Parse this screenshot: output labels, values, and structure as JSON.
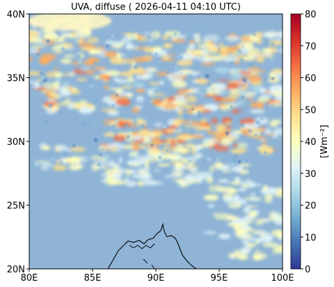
{
  "title": "UVA, diffuse ( 2026-04-11 04:10 UTC)",
  "map": {
    "lon_ticks": [
      "80E",
      "85E",
      "90E",
      "95E",
      "100E"
    ],
    "lat_ticks": [
      "40N",
      "35N",
      "30N",
      "25N",
      "20N"
    ],
    "lon_range": [
      80,
      100
    ],
    "lat_range": [
      20,
      40
    ]
  },
  "colorbar": {
    "label": "[Wm⁻²]",
    "ticks": [
      "0",
      "10",
      "20",
      "30",
      "40",
      "50",
      "60",
      "70",
      "80"
    ],
    "range": [
      0,
      80
    ],
    "colormap": "RdYlBu_r",
    "stops": [
      "#313695",
      "#4575b4",
      "#74add1",
      "#abd9e9",
      "#e0f3f8",
      "#ffffbf",
      "#fee090",
      "#fdae61",
      "#f46d43",
      "#d73027",
      "#a50026"
    ]
  },
  "colors": {
    "background_field": "#8fb4d6",
    "coastline": "#000000"
  }
}
